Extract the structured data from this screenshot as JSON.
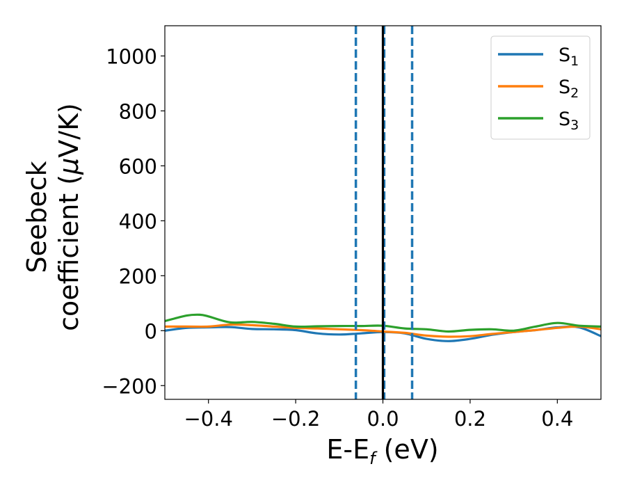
{
  "chart_data": {
    "type": "line",
    "title": "",
    "xlabel": {
      "main": "E-E",
      "sub": "f",
      "unit": " (eV)"
    },
    "ylabel": {
      "line1": "Seebeck",
      "line2_prefix": "coefficient  (",
      "mu": "μ",
      "line2_suffix": "V/K)"
    },
    "xlim": [
      -0.5,
      0.5
    ],
    "ylim": [
      -250,
      1110
    ],
    "xticks": [
      -0.4,
      -0.2,
      0.0,
      0.2,
      0.4
    ],
    "xtick_labels": [
      "−0.4",
      "−0.2",
      "0.0",
      "0.2",
      "0.4"
    ],
    "yticks": [
      -200,
      0,
      200,
      400,
      600,
      800,
      1000
    ],
    "ytick_labels": [
      "−200",
      "0",
      "200",
      "400",
      "600",
      "800",
      "1000"
    ],
    "grid": false,
    "legend_position": "top-right",
    "vlines": [
      {
        "x": -0.062,
        "style": "dashed",
        "color": "#1f77b4"
      },
      {
        "x": 0.003,
        "style": "dashed",
        "color": "#1f77b4"
      },
      {
        "x": 0.067,
        "style": "dashed",
        "color": "#1f77b4"
      },
      {
        "x": 0.0,
        "style": "solid",
        "color": "#000000"
      }
    ],
    "series": [
      {
        "name": "S",
        "sub": "1",
        "color": "#1f77b4",
        "x": [
          -0.5,
          -0.45,
          -0.4,
          -0.35,
          -0.3,
          -0.25,
          -0.2,
          -0.15,
          -0.1,
          -0.05,
          0.0,
          0.05,
          0.1,
          0.15,
          0.2,
          0.25,
          0.3,
          0.35,
          0.4,
          0.45,
          0.5
        ],
        "y": [
          0,
          10,
          12,
          13,
          6,
          5,
          2,
          -10,
          -14,
          -10,
          -5,
          -10,
          -30,
          -38,
          -30,
          -15,
          -5,
          2,
          12,
          12,
          -20
        ]
      },
      {
        "name": "S",
        "sub": "2",
        "color": "#ff7f0e",
        "x": [
          -0.5,
          -0.45,
          -0.4,
          -0.35,
          -0.3,
          -0.25,
          -0.2,
          -0.15,
          -0.1,
          -0.05,
          0.0,
          0.05,
          0.1,
          0.15,
          0.2,
          0.25,
          0.3,
          0.35,
          0.4,
          0.45,
          0.5
        ],
        "y": [
          15,
          15,
          15,
          22,
          20,
          15,
          10,
          8,
          5,
          2,
          -3,
          -8,
          -18,
          -22,
          -20,
          -12,
          -5,
          2,
          10,
          15,
          5
        ]
      },
      {
        "name": "S",
        "sub": "3",
        "color": "#2ca02c",
        "x": [
          -0.5,
          -0.45,
          -0.42,
          -0.4,
          -0.35,
          -0.3,
          -0.25,
          -0.2,
          -0.15,
          -0.1,
          -0.05,
          0.0,
          0.05,
          0.1,
          0.15,
          0.2,
          0.25,
          0.3,
          0.35,
          0.4,
          0.45,
          0.5
        ],
        "y": [
          35,
          55,
          58,
          52,
          30,
          32,
          25,
          15,
          16,
          17,
          17,
          18,
          8,
          5,
          -3,
          3,
          5,
          0,
          15,
          28,
          18,
          15
        ]
      }
    ]
  }
}
